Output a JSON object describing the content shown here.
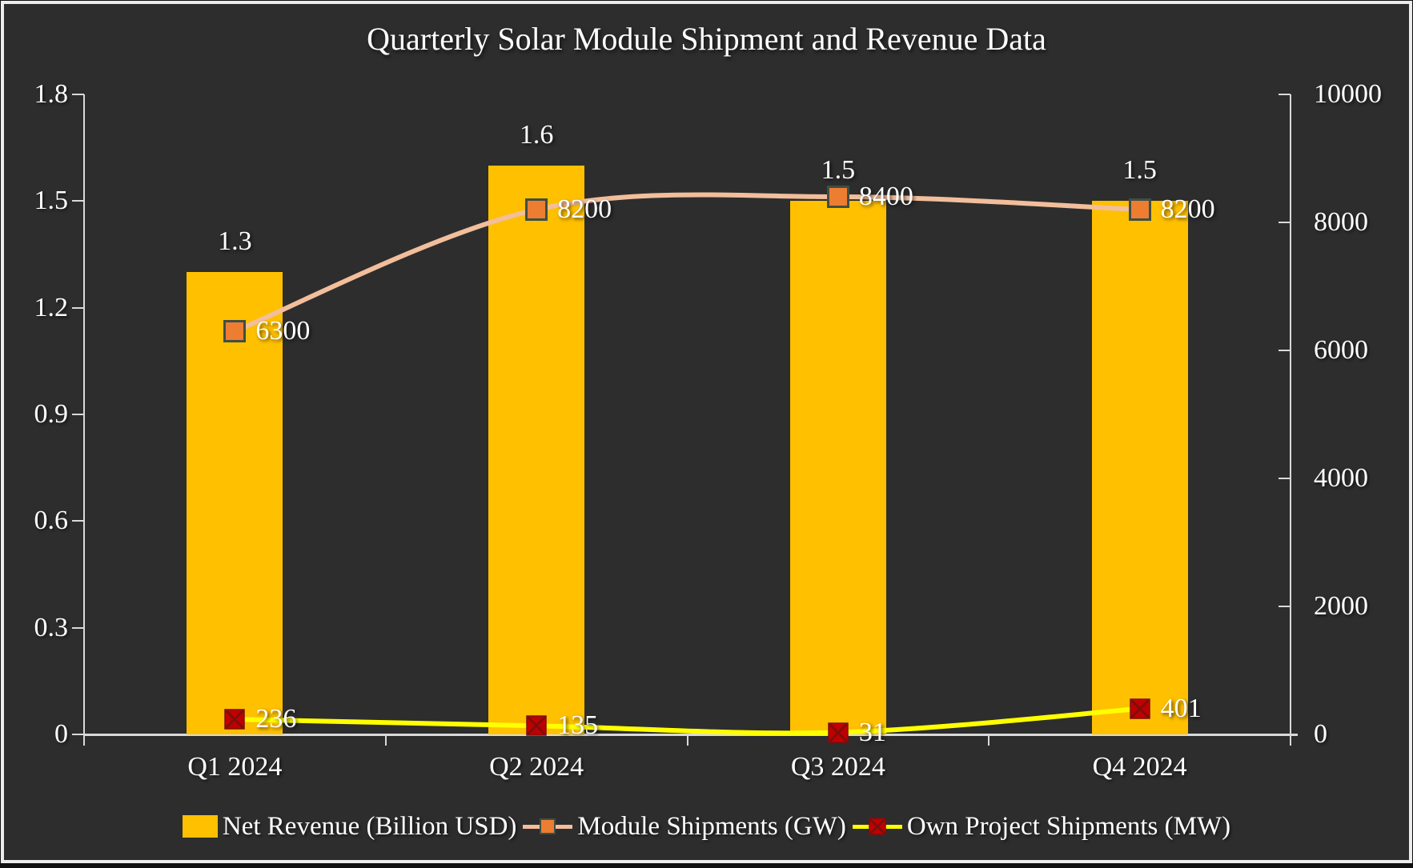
{
  "title": "Quarterly Solar Module Shipment and Revenue Data",
  "colors": {
    "background": "#2D2D2D",
    "text": "#FFFFFF",
    "axis": "#D9D9D9",
    "frame": "#ECECEC"
  },
  "chart_data": {
    "type": "bar",
    "subtype": "combo-bar-line",
    "title": "Quarterly Solar Module Shipment and Revenue Data",
    "categories": [
      "Q1 2024",
      "Q2 2024",
      "Q3 2024",
      "Q4 2024"
    ],
    "series": [
      {
        "name": "Net Revenue (Billion USD)",
        "chart_type": "bar",
        "axis": "left",
        "values": [
          1.3,
          1.6,
          1.5,
          1.5
        ],
        "data_labels": [
          "1.3",
          "1.6",
          "1.5",
          "1.5"
        ],
        "color": "#FFC000"
      },
      {
        "name": "Module Shipments (GW)",
        "chart_type": "line",
        "axis": "right",
        "values": [
          6300,
          8200,
          8400,
          8200
        ],
        "data_labels": [
          "6300",
          "8200",
          "8400",
          "8200"
        ],
        "color": "#F2BE9B",
        "marker": {
          "shape": "square",
          "fill": "#ED7D31",
          "border": "#3E4F45"
        }
      },
      {
        "name": "Own Project Shipments (MW)",
        "chart_type": "line",
        "axis": "right",
        "values": [
          236,
          135,
          31,
          401
        ],
        "data_labels": [
          "236",
          "135",
          "31",
          "401"
        ],
        "color": "#FFFF00",
        "marker": {
          "shape": "x-square",
          "fill": "#C00000",
          "border": "#7F0D0D"
        }
      }
    ],
    "left_axis": {
      "min": 0,
      "max": 1.8,
      "tick_labels": [
        "0",
        "0.3",
        "0.6",
        "0.9",
        "1.2",
        "1.5",
        "1.8"
      ]
    },
    "right_axis": {
      "min": 0,
      "max": 10000,
      "tick_labels": [
        "0",
        "2000",
        "4000",
        "6000",
        "8000",
        "10000"
      ]
    },
    "legend_position": "bottom",
    "grid": false
  }
}
